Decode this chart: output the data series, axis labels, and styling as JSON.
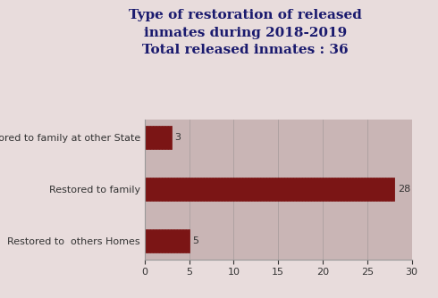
{
  "title_line1": "Type of restoration of released",
  "title_line2": "inmates during 2018-2019",
  "title_line3": "Total released inmates : 36",
  "categories": [
    "Restored to family at other State",
    "Restored to family",
    "Restored to  others Homes"
  ],
  "values": [
    3,
    28,
    5
  ],
  "bar_color": "#7B1515",
  "bg_color": "#E8DCDC",
  "plot_bg_color": "#C9B5B5",
  "title_color": "#1a1a6e",
  "label_color": "#333333",
  "xlim": [
    0,
    30
  ],
  "xticks": [
    0,
    5,
    10,
    15,
    20,
    25,
    30
  ],
  "title_fontsize": 11,
  "label_fontsize": 8,
  "value_fontsize": 8
}
